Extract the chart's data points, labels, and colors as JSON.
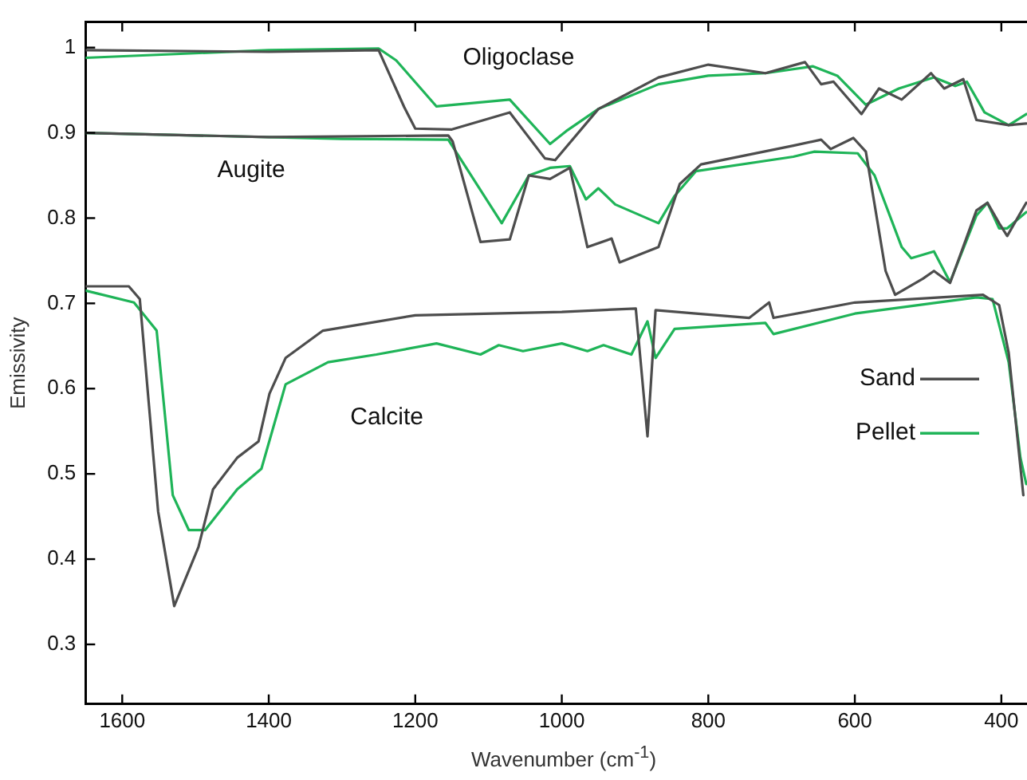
{
  "chart_data": {
    "type": "line",
    "xlabel": "Wavenumber (cm$^{-1}$)",
    "ylabel": "Emissivity",
    "xlim": [
      1650,
      365
    ],
    "ylim": [
      0.23,
      1.03
    ],
    "xticks": [
      1600,
      1400,
      1200,
      1000,
      800,
      600,
      400
    ],
    "yticks": [
      0.3,
      0.4,
      0.5,
      0.6,
      0.7,
      0.8,
      0.9,
      {
        "value": 1,
        "label": "1"
      }
    ],
    "legend": "right",
    "marker": "none",
    "line_style": "solid",
    "annotations": [
      "Oligoclase",
      "Augite",
      "Calcite"
    ],
    "series": [
      {
        "name": "Sand",
        "color": "#4d4d4d",
        "x": [
          1650,
          1400,
          1250,
          1215,
          1200,
          1150,
          1071,
          1023,
          1009,
          950,
          868,
          800,
          722,
          668,
          646,
          629,
          591,
          567,
          536,
          496,
          478,
          452,
          434,
          390,
          366
        ],
        "values": [
          0.997,
          0.995,
          0.997,
          0.93,
          0.905,
          0.904,
          0.924,
          0.87,
          0.868,
          0.928,
          0.965,
          0.98,
          0.97,
          0.983,
          0.957,
          0.96,
          0.922,
          0.952,
          0.939,
          0.97,
          0.952,
          0.963,
          0.915,
          0.909,
          0.911
        ]
      },
      {
        "name": "Pellet",
        "color": "#1fb458",
        "x": [
          1650,
          1400,
          1250,
          1226,
          1171,
          1071,
          1016,
          994,
          950,
          868,
          800,
          722,
          657,
          624,
          585,
          540,
          492,
          463,
          447,
          423,
          390,
          366
        ],
        "values": [
          0.988,
          0.997,
          0.999,
          0.985,
          0.931,
          0.939,
          0.887,
          0.902,
          0.928,
          0.957,
          0.967,
          0.97,
          0.978,
          0.967,
          0.933,
          0.952,
          0.965,
          0.955,
          0.96,
          0.924,
          0.909,
          0.922
        ]
      },
      {
        "color": "#4d4d4d",
        "x": [
          1650,
          1400,
          1155,
          1149,
          1111,
          1071,
          1045,
          1016,
          989,
          965,
          932,
          921,
          868,
          839,
          810,
          684,
          646,
          633,
          602,
          585,
          558,
          545,
          507,
          492,
          470,
          434,
          419,
          403,
          392,
          366
        ],
        "values": [
          0.9,
          0.895,
          0.897,
          0.89,
          0.772,
          0.775,
          0.85,
          0.846,
          0.859,
          0.766,
          0.776,
          0.748,
          0.766,
          0.84,
          0.863,
          0.885,
          0.892,
          0.881,
          0.894,
          0.878,
          0.738,
          0.71,
          0.729,
          0.738,
          0.724,
          0.809,
          0.818,
          0.794,
          0.779,
          0.818
        ]
      },
      {
        "color": "#1fb458",
        "x": [
          1650,
          1300,
          1155,
          1082,
          1045,
          1016,
          989,
          967,
          950,
          927,
          868,
          846,
          817,
          684,
          655,
          596,
          573,
          536,
          523,
          492,
          470,
          434,
          419,
          403,
          392,
          366
        ],
        "values": [
          0.9,
          0.893,
          0.892,
          0.794,
          0.85,
          0.859,
          0.861,
          0.822,
          0.835,
          0.816,
          0.794,
          0.826,
          0.855,
          0.872,
          0.878,
          0.876,
          0.85,
          0.766,
          0.753,
          0.761,
          0.725,
          0.803,
          0.818,
          0.788,
          0.788,
          0.807
        ]
      },
      {
        "color": "#4d4d4d",
        "x": [
          1650,
          1591,
          1576,
          1551,
          1529,
          1496,
          1476,
          1443,
          1414,
          1399,
          1377,
          1326,
          1200,
          1000,
          899,
          883,
          872,
          817,
          744,
          717,
          711,
          600,
          425,
          403,
          390,
          370
        ],
        "values": [
          0.72,
          0.72,
          0.705,
          0.456,
          0.345,
          0.414,
          0.482,
          0.519,
          0.538,
          0.594,
          0.636,
          0.668,
          0.686,
          0.69,
          0.694,
          0.544,
          0.692,
          0.688,
          0.683,
          0.701,
          0.683,
          0.701,
          0.71,
          0.698,
          0.642,
          0.475
        ]
      },
      {
        "color": "#1fb458",
        "x": [
          1650,
          1584,
          1553,
          1531,
          1509,
          1487,
          1443,
          1410,
          1377,
          1319,
          1253,
          1171,
          1111,
          1086,
          1053,
          1000,
          965,
          943,
          905,
          883,
          872,
          846,
          722,
          711,
          600,
          434,
          412,
          390,
          374,
          366
        ],
        "values": [
          0.715,
          0.701,
          0.668,
          0.475,
          0.434,
          0.434,
          0.482,
          0.506,
          0.605,
          0.631,
          0.64,
          0.653,
          0.64,
          0.651,
          0.644,
          0.653,
          0.644,
          0.651,
          0.64,
          0.679,
          0.636,
          0.67,
          0.677,
          0.664,
          0.688,
          0.707,
          0.705,
          0.631,
          0.519,
          0.488
        ]
      }
    ]
  }
}
